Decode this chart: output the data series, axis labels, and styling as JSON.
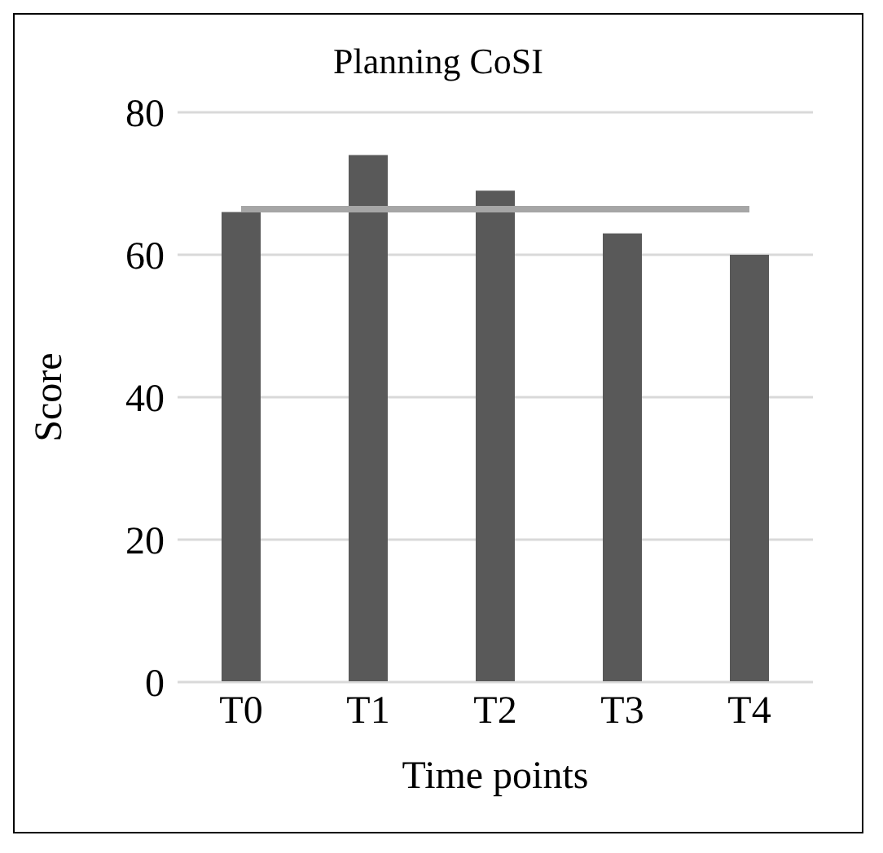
{
  "chart_data": {
    "type": "bar",
    "title": "Planning CoSI",
    "xlabel": "Time points",
    "ylabel": "Score",
    "categories": [
      "T0",
      "T1",
      "T2",
      "T3",
      "T4"
    ],
    "series": [
      {
        "color": "#595959",
        "values": [
          66,
          74,
          69,
          63,
          60
        ]
      },
      {
        "type": "line",
        "color": "#a6a6a6",
        "values": [
          66.4,
          66.4,
          66.4,
          66.4,
          66.4
        ]
      }
    ],
    "ylim": [
      0,
      80
    ],
    "yticks": [
      0,
      20,
      40,
      60,
      80
    ],
    "grid": "y",
    "marker": "none"
  }
}
